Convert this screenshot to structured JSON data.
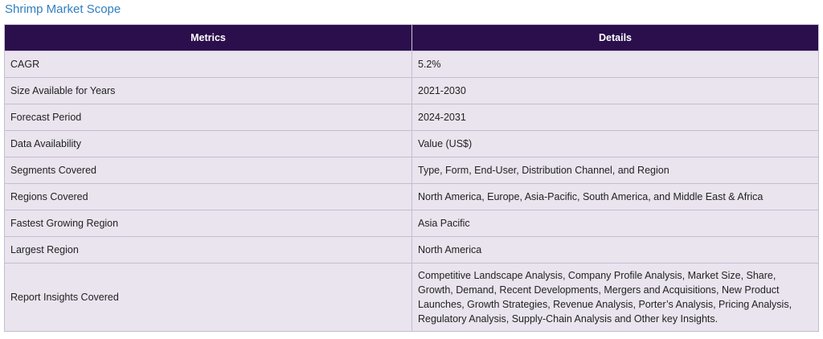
{
  "title": "Shrimp Market Scope",
  "table": {
    "headers": [
      "Metrics",
      "Details"
    ],
    "rows": [
      {
        "metric": "CAGR",
        "detail": "5.2%"
      },
      {
        "metric": "Size Available for Years",
        "detail": "2021-2030"
      },
      {
        "metric": "Forecast Period",
        "detail": "2024-2031"
      },
      {
        "metric": "Data Availability",
        "detail": "Value (US$)"
      },
      {
        "metric": "Segments Covered",
        "detail": "Type, Form, End-User, Distribution Channel, and Region"
      },
      {
        "metric": "Regions Covered",
        "detail": "North America, Europe, Asia-Pacific, South America, and Middle East & Africa"
      },
      {
        "metric": "Fastest Growing Region",
        "detail": "Asia Pacific"
      },
      {
        "metric": "Largest Region",
        "detail": "North America"
      },
      {
        "metric": "Report Insights Covered",
        "detail": "Competitive Landscape Analysis, Company Profile Analysis, Market Size, Share, Growth, Demand, Recent Developments, Mergers and Acquisitions, New Product Launches, Growth Strategies, Revenue Analysis, Porter’s Analysis, Pricing Analysis, Regulatory Analysis, Supply-Chain Analysis and Other key Insights."
      }
    ]
  },
  "colors": {
    "title": "#2f7fc0",
    "header_bg": "#2b0f4c",
    "row_bg": "#e9e4ee"
  }
}
